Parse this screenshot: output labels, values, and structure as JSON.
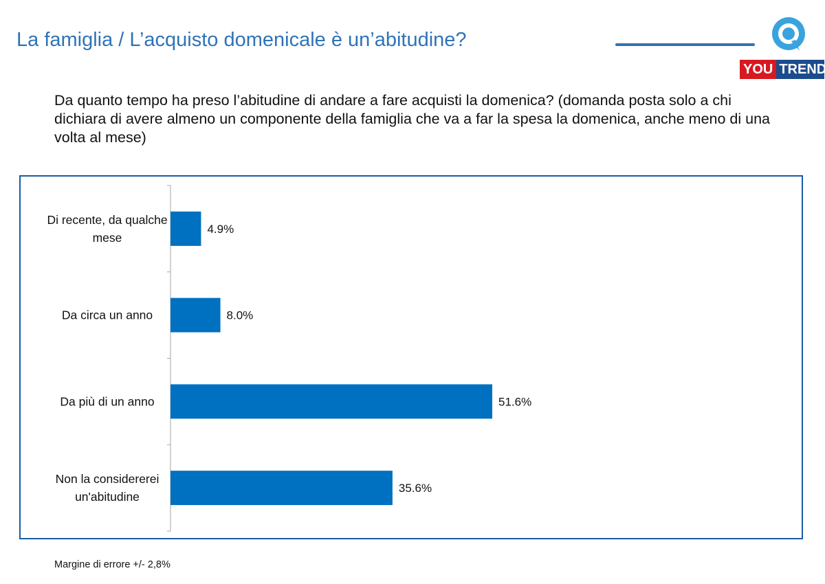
{
  "header": {
    "title": "La famiglia / L’acquisto domenicale è un’abitudine?",
    "logo_you": "YOU",
    "logo_trend": "TREND"
  },
  "question": "Da quanto tempo ha preso l’abitudine di andare a fare acquisti la domenica? (domanda posta solo a chi dichiara di avere almeno un componente della famiglia che va a far la spesa la domenica, anche meno di una volta al mese)",
  "footnote": "Margine di errore +/- 2,8%",
  "colors": {
    "title": "#2F73B7",
    "bar": "#0070C0",
    "chart_border": "#1A5BA6",
    "logo_red": "#D71920",
    "logo_blue": "#1C4C8E",
    "logo_q": "#3AA3DD"
  },
  "icons": {
    "logo_mark": "q-speech-bubble-icon"
  },
  "chart_data": {
    "type": "bar",
    "orientation": "horizontal",
    "categories": [
      "Di recente, da qualche mese",
      "Da circa un anno",
      "Da più di un anno",
      "Non la considererei un'abitudine"
    ],
    "values": [
      4.9,
      8.0,
      51.6,
      35.6
    ],
    "value_labels": [
      "4.9%",
      "8.0%",
      "51.6%",
      "35.6%"
    ],
    "unit": "%",
    "xlim": [
      0,
      100
    ],
    "grid": false,
    "legend": "none"
  }
}
